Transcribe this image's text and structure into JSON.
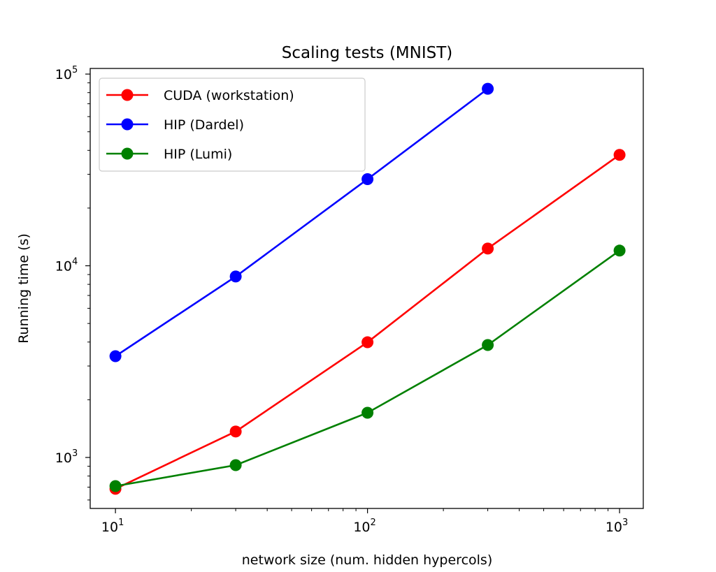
{
  "chart_data": {
    "type": "line",
    "title": "Scaling tests (MNIST)",
    "xlabel": "network size (num. hidden hypercols)",
    "ylabel": "Running time (s)",
    "xscale": "log",
    "yscale": "log",
    "xlim": [
      7.94,
      1242
    ],
    "ylim": [
      542,
      107000
    ],
    "xticks": [
      {
        "value": 10,
        "label": "10",
        "exp": "1"
      },
      {
        "value": 100,
        "label": "10",
        "exp": "2"
      },
      {
        "value": 1000,
        "label": "10",
        "exp": "3"
      }
    ],
    "yticks": [
      {
        "value": 1000,
        "label": "10",
        "exp": "3"
      },
      {
        "value": 10000,
        "label": "10",
        "exp": "4"
      },
      {
        "value": 100000,
        "label": "10",
        "exp": "5"
      }
    ],
    "grid": false,
    "legend_placement": "top-left",
    "series": [
      {
        "name": "CUDA (workstation)",
        "color": "#ff0000",
        "x": [
          10,
          30,
          100,
          300,
          1000
        ],
        "y": [
          686,
          1366,
          3990,
          12300,
          37900
        ]
      },
      {
        "name": "HIP (Dardel)",
        "color": "#0000ff",
        "x": [
          10,
          30,
          100,
          300
        ],
        "y": [
          3375,
          8790,
          28300,
          83800
        ]
      },
      {
        "name": "HIP (Lumi)",
        "color": "#008000",
        "x": [
          10,
          30,
          100,
          300,
          1000
        ],
        "y": [
          709,
          912,
          1711,
          3860,
          12000
        ]
      }
    ]
  }
}
